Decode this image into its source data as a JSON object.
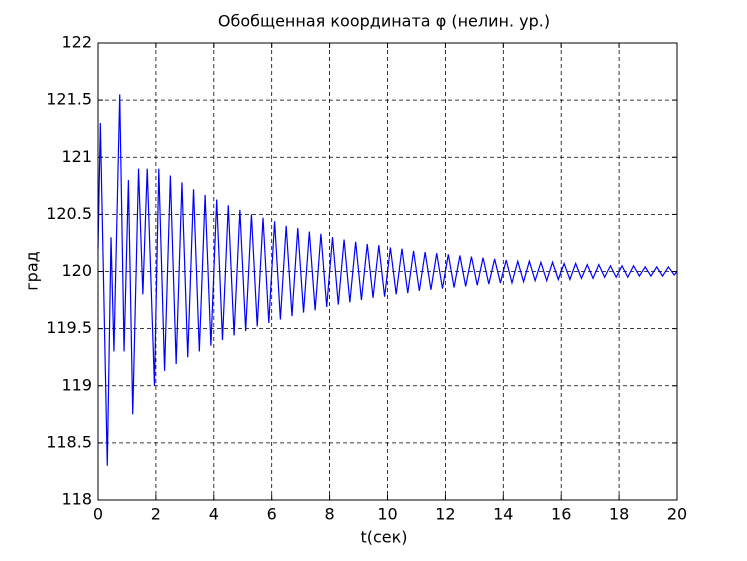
{
  "chart_data": {
    "type": "line",
    "title": "Обобщенная координата φ (нелин. ур.)",
    "xlabel": "t(сек)",
    "ylabel": "град",
    "x": [
      0,
      0.08,
      0.32,
      0.45,
      0.55,
      0.75,
      0.9,
      1.05,
      1.2,
      1.4,
      1.55,
      1.7,
      1.95,
      2.1,
      2.3,
      2.5,
      2.7,
      2.9,
      3.1,
      3.3,
      3.5,
      3.7,
      3.9,
      4.1,
      4.3,
      4.5,
      4.7,
      4.9,
      5.1,
      5.3,
      5.5,
      5.7,
      5.9,
      6.1,
      6.3,
      6.5,
      6.7,
      6.9,
      7.1,
      7.3,
      7.5,
      7.7,
      7.9,
      8.1,
      8.3,
      8.5,
      8.7,
      8.9,
      9.1,
      9.3,
      9.5,
      9.7,
      9.9,
      10.1,
      10.3,
      10.5,
      10.7,
      10.9,
      11.1,
      11.3,
      11.5,
      11.7,
      11.9,
      12.1,
      12.3,
      12.5,
      12.7,
      12.9,
      13.1,
      13.3,
      13.5,
      13.7,
      13.9,
      14.1,
      14.3,
      14.5,
      14.7,
      14.9,
      15.1,
      15.3,
      15.5,
      15.7,
      15.9,
      16.1,
      16.3,
      16.5,
      16.7,
      16.9,
      17.1,
      17.3,
      17.5,
      17.7,
      17.9,
      18.1,
      18.3,
      18.5,
      18.7,
      18.9,
      19.1,
      19.3,
      19.5,
      19.7,
      19.9,
      20
    ],
    "series": [
      {
        "color": "#0000ff",
        "values": [
          120.2,
          121.3,
          118.3,
          120.3,
          119.3,
          121.55,
          119.3,
          120.8,
          118.75,
          120.9,
          119.8,
          120.9,
          119.0,
          120.9,
          119.13,
          120.84,
          119.19,
          120.78,
          119.25,
          120.72,
          119.3,
          120.67,
          119.35,
          120.63,
          119.4,
          120.58,
          119.44,
          120.54,
          119.48,
          120.5,
          119.52,
          120.47,
          119.55,
          120.44,
          119.58,
          120.4,
          119.61,
          120.38,
          119.64,
          120.35,
          119.66,
          120.33,
          119.69,
          120.3,
          119.71,
          120.28,
          119.73,
          120.26,
          119.75,
          120.24,
          119.77,
          120.23,
          119.78,
          120.21,
          119.8,
          120.2,
          119.81,
          120.18,
          119.83,
          120.17,
          119.84,
          120.16,
          119.85,
          120.15,
          119.86,
          120.14,
          119.87,
          120.13,
          119.88,
          120.12,
          119.89,
          120.11,
          119.9,
          120.1,
          119.9,
          120.09,
          119.91,
          120.09,
          119.92,
          120.08,
          119.92,
          120.08,
          119.93,
          120.07,
          119.93,
          120.07,
          119.94,
          120.06,
          119.94,
          120.06,
          119.95,
          120.05,
          119.95,
          120.05,
          119.95,
          120.05,
          119.96,
          120.04,
          119.96,
          120.04,
          119.96,
          120.04,
          119.97,
          120.0
        ]
      }
    ],
    "xlim": [
      0,
      20
    ],
    "xticks": [
      0,
      2,
      4,
      6,
      8,
      10,
      12,
      14,
      16,
      18,
      20
    ],
    "ylim": [
      118,
      122
    ],
    "yticks": [
      118,
      118.5,
      119,
      119.5,
      120,
      120.5,
      121,
      121.5,
      122
    ],
    "grid": true
  }
}
